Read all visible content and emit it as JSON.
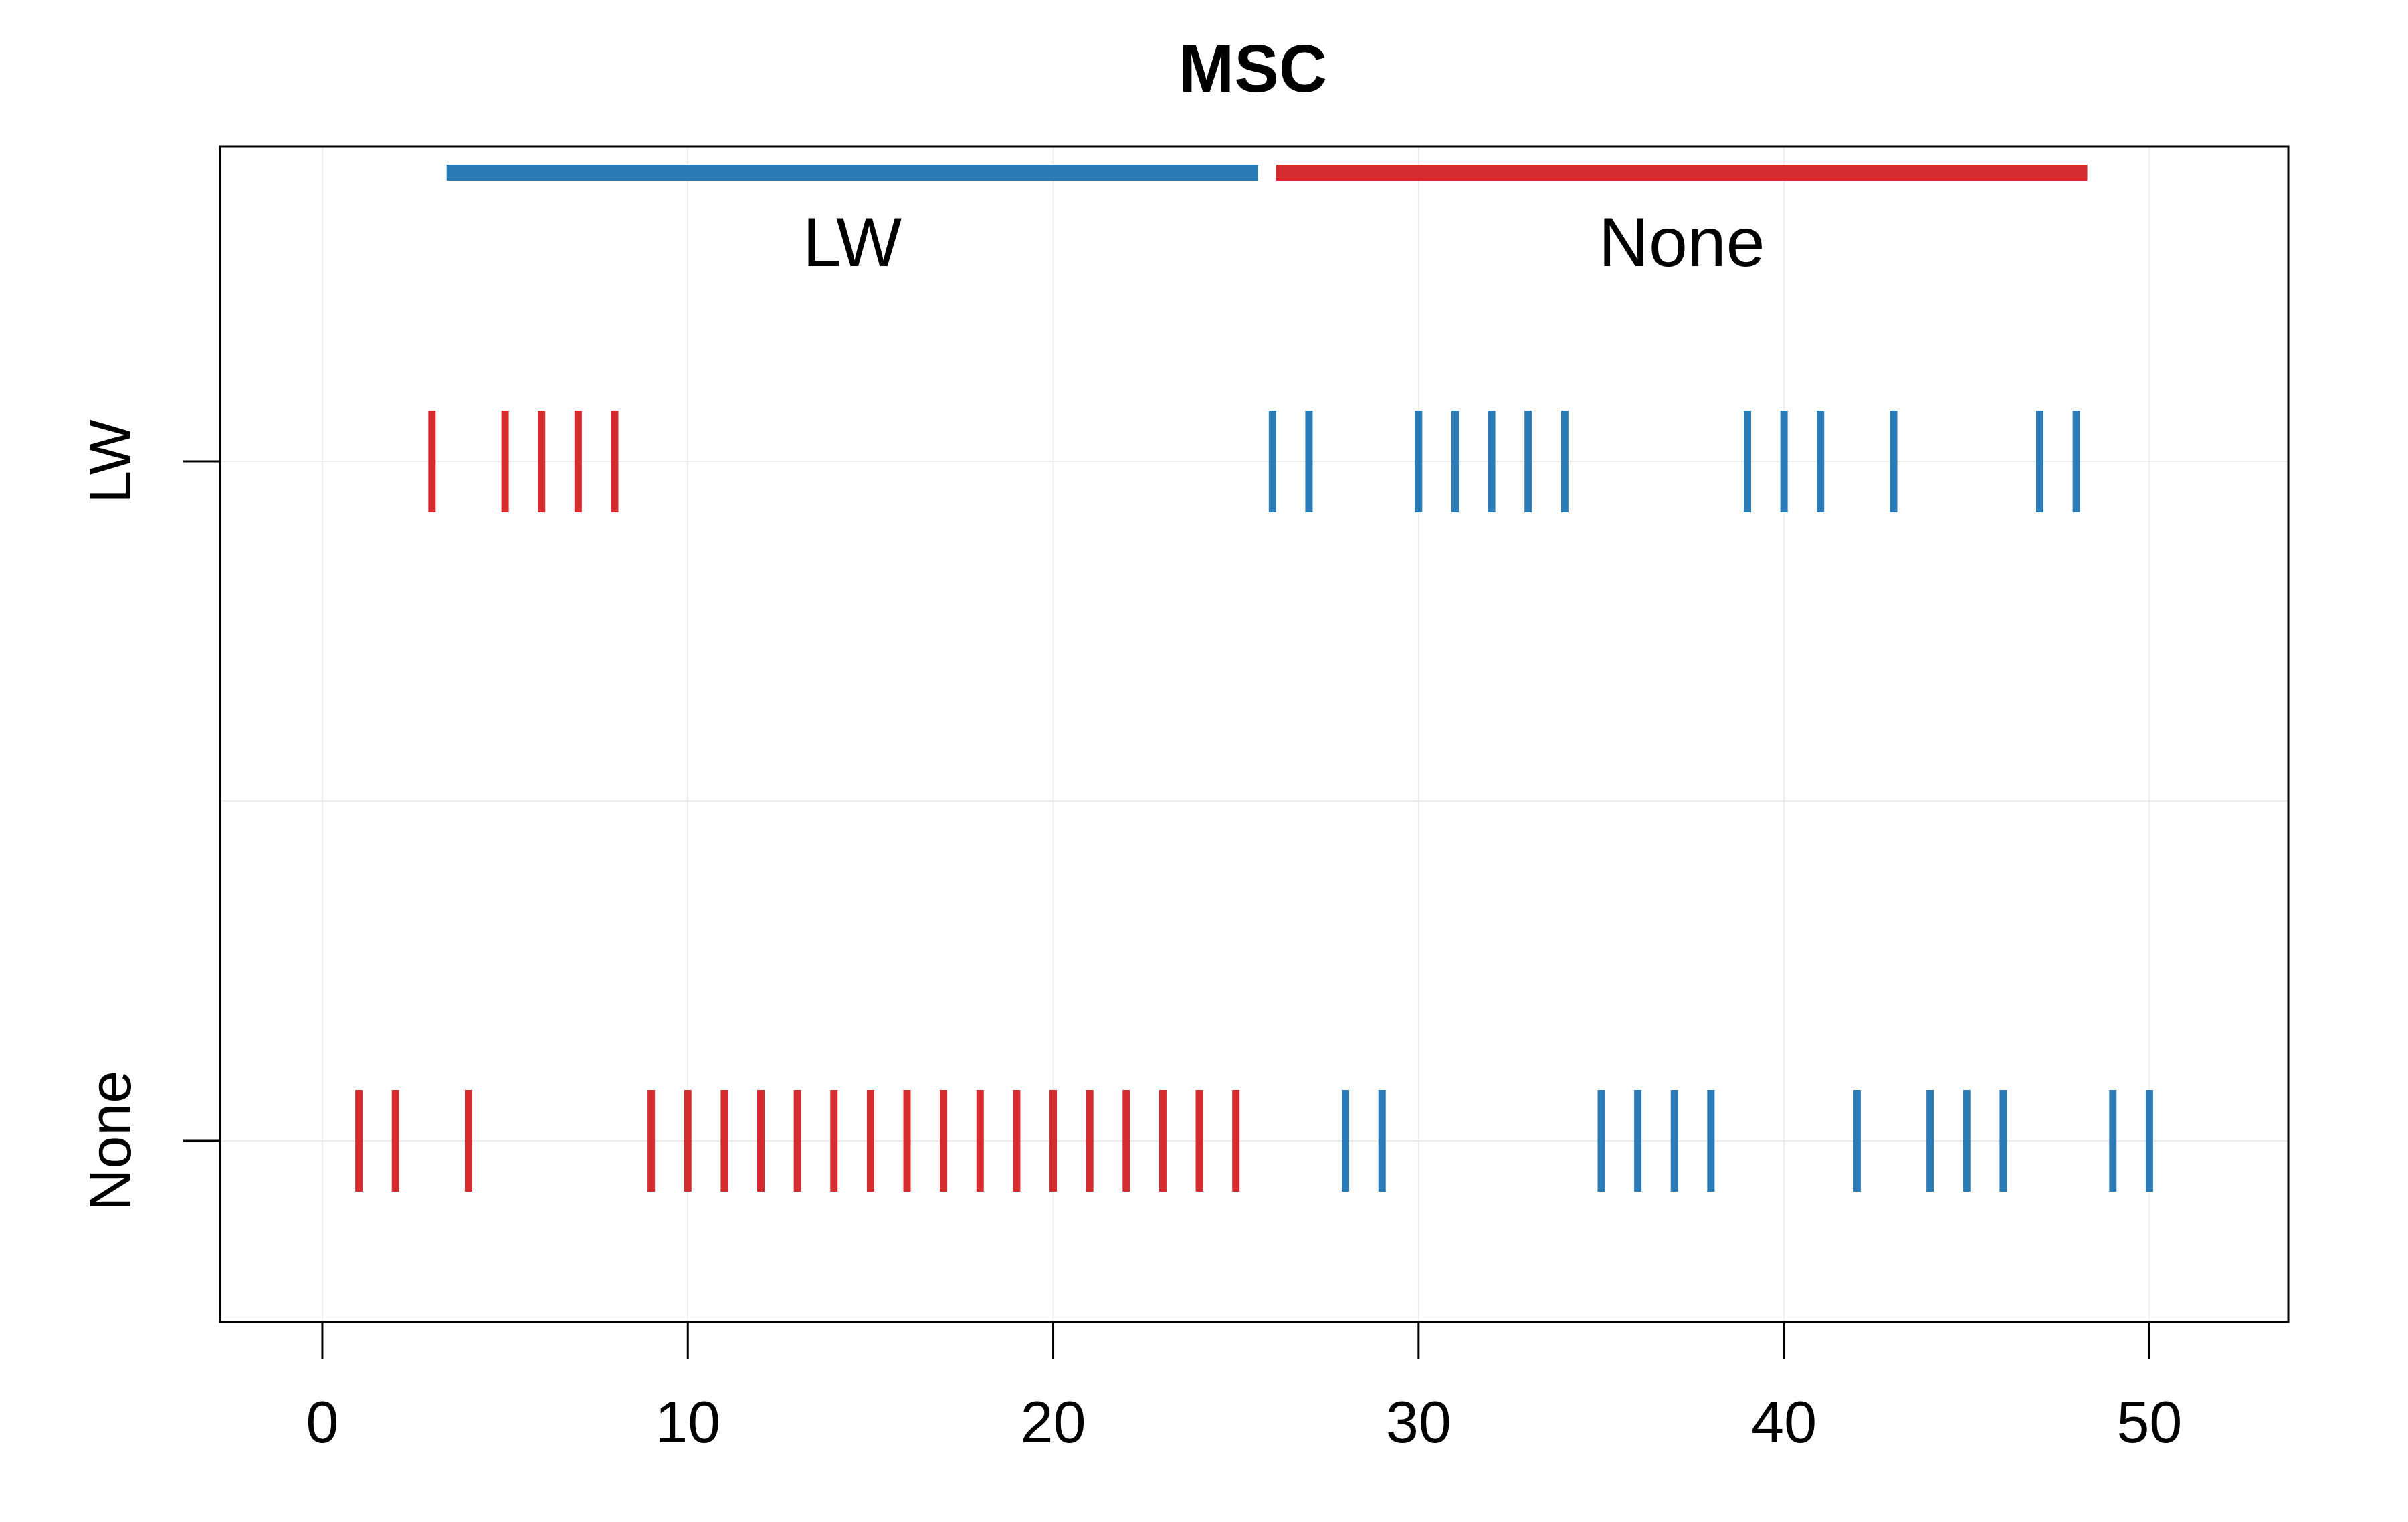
{
  "chart_data": {
    "type": "scatter",
    "title": "MSC",
    "xlabel": "",
    "ylabel": "",
    "xlim": [
      -2.8,
      53.8
    ],
    "x_ticks": [
      "0",
      "10",
      "20",
      "30",
      "40",
      "50"
    ],
    "x_tick_values": [
      0,
      10,
      20,
      30,
      40,
      50
    ],
    "y_categories": [
      "LW",
      "None"
    ],
    "grid": true,
    "colors": {
      "red": "#d62b2f",
      "blue": "#2b7bb6"
    },
    "bands": [
      {
        "label": "LW",
        "start": 3.4,
        "end": 25.6,
        "color": "#2b7bb6"
      },
      {
        "label": "None",
        "start": 26.1,
        "end": 48.3,
        "color": "#d62b2f"
      }
    ],
    "series": [
      {
        "row": "LW",
        "color": "#d62b2f",
        "x": [
          3,
          5,
          6,
          7,
          8
        ]
      },
      {
        "row": "LW",
        "color": "#2b7bb6",
        "x": [
          26,
          27,
          30,
          31,
          32,
          33,
          34,
          39,
          40,
          41,
          43,
          47,
          48
        ]
      },
      {
        "row": "None",
        "color": "#d62b2f",
        "x": [
          1,
          2,
          4,
          9,
          10,
          11,
          12,
          13,
          14,
          15,
          16,
          17,
          18,
          19,
          20,
          21,
          22,
          23,
          24,
          25
        ]
      },
      {
        "row": "None",
        "color": "#2b7bb6",
        "x": [
          28,
          29,
          35,
          36,
          37,
          38,
          42,
          44,
          45,
          46,
          49,
          50
        ]
      }
    ]
  }
}
